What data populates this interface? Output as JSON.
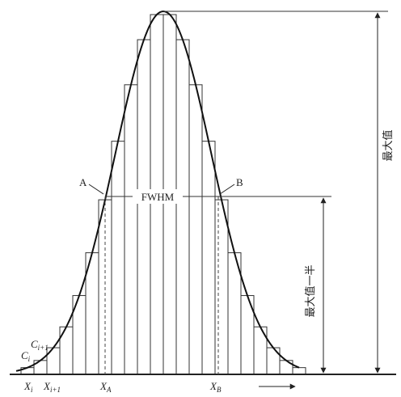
{
  "labels": {
    "a": "A",
    "b": "B",
    "fwhm": "FWHM",
    "max": "最大值",
    "half_max": "最大值一半",
    "c_i": {
      "main": "C",
      "sub": "i"
    },
    "c_i1": {
      "main": "C",
      "sub": "i+1"
    },
    "x_i": {
      "main": "X",
      "sub": "i"
    },
    "x_i1": {
      "main": "X",
      "sub": "i+1"
    },
    "x_a": {
      "main": "X",
      "sub": "A"
    },
    "x_b": {
      "main": "X",
      "sub": "B"
    }
  }
}
